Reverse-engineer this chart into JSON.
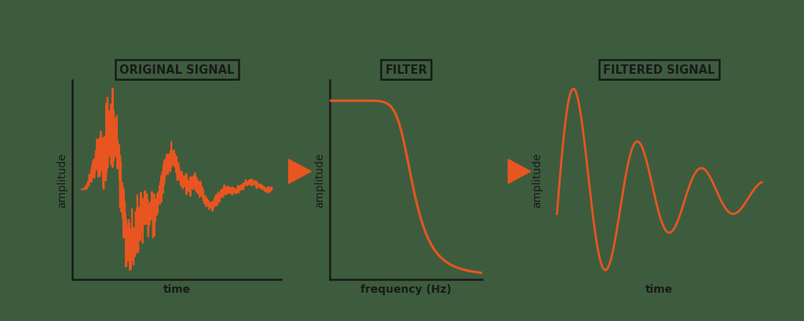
{
  "bg_color": "#3d5c3e",
  "signal_color": "#e85520",
  "axis_color": "#1a1a1a",
  "text_color": "#1a1a1a",
  "box_color": "#1a1a1a",
  "arrow_color": "#e85520",
  "title1": "ORIGINAL SIGNAL",
  "title2": "FILTER",
  "title3": "FILTERED SIGNAL",
  "xlabel1": "time",
  "xlabel2": "frequency (Hz)",
  "xlabel3": "time",
  "ylabel1": "amplitude",
  "ylabel2": "amplitude",
  "ylabel3": "amplitude",
  "linewidth": 1.8,
  "title_fontsize": 10.5,
  "label_fontsize": 10
}
